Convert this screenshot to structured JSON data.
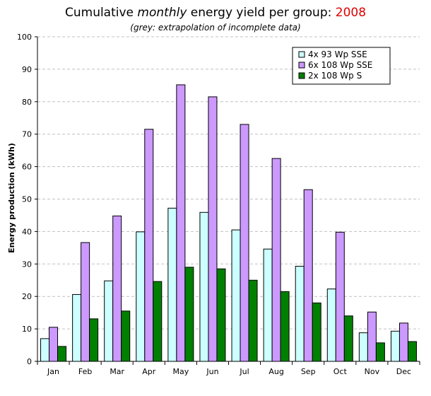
{
  "title": {
    "prefix": "Cumulative ",
    "emphasis": "monthly",
    "suffix": "  energy yield per group: ",
    "year": "2008"
  },
  "subtitle": "(grey: extrapolation of incomplete data)",
  "colors": {
    "title_year": "#e00000",
    "grid": "#c0c0c0",
    "axis": "#000000"
  },
  "chart_data": {
    "type": "bar",
    "categories": [
      "Jan",
      "Feb",
      "Mar",
      "Apr",
      "May",
      "Jun",
      "Jul",
      "Aug",
      "Sep",
      "Oct",
      "Nov",
      "Dec"
    ],
    "series": [
      {
        "name": "4x 93 Wp SSE",
        "color": "#ccffff",
        "values": [
          7.0,
          20.6,
          24.8,
          39.9,
          47.2,
          45.9,
          40.5,
          34.6,
          29.3,
          22.3,
          8.8,
          9.3
        ]
      },
      {
        "name": "6x 108 Wp SSE",
        "color": "#cc99ff",
        "values": [
          10.5,
          36.6,
          44.8,
          71.5,
          85.2,
          81.5,
          73.0,
          62.5,
          52.9,
          39.8,
          15.2,
          11.8
        ]
      },
      {
        "name": "2x 108 Wp S",
        "color": "#008000",
        "values": [
          4.6,
          13.1,
          15.5,
          24.6,
          29.0,
          28.5,
          25.0,
          21.5,
          18.0,
          14.0,
          5.7,
          6.1
        ]
      }
    ],
    "ylabel": "Energy production (kWh)",
    "xlabel": "",
    "ylim": [
      0,
      100
    ],
    "yticks": [
      "0",
      "10",
      "20",
      "30",
      "40",
      "50",
      "60",
      "70",
      "80",
      "90",
      "100"
    ],
    "grid": true,
    "legend_position": "top-right"
  }
}
